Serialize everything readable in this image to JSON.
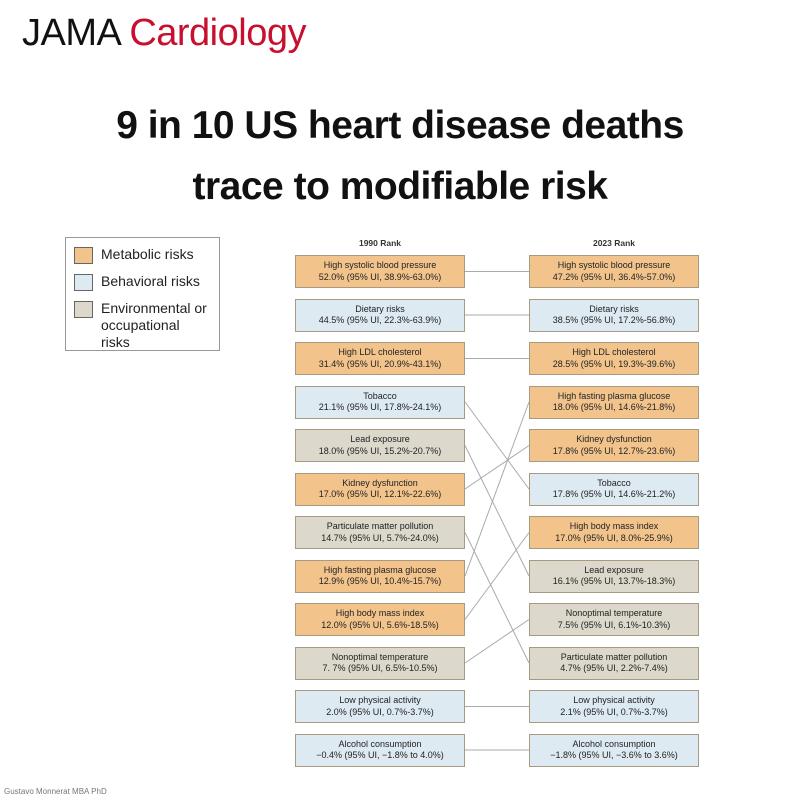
{
  "header": {
    "brand": "JAMA",
    "journal": "Cardiology"
  },
  "title": [
    "9 in 10 US heart disease deaths",
    "trace to modifiable risk"
  ],
  "legend": [
    {
      "label": "Metabolic risks",
      "color": "#f2c48c"
    },
    {
      "label": "Behavioral risks",
      "color": "#deeaf2"
    },
    {
      "label": "Environmental or occupational risks",
      "color": "#dcd8cb"
    }
  ],
  "columns": [
    {
      "title": "1990 Rank",
      "items": [
        {
          "name": "High systolic blood pressure",
          "stats": "52.0% (95% UI, 38.9%-63.0%)",
          "color": "#f2c48c"
        },
        {
          "name": "Dietary risks",
          "stats": "44.5% (95% UI, 22.3%-63.9%)",
          "color": "#deeaf2"
        },
        {
          "name": "High LDL cholesterol",
          "stats": "31.4% (95% UI, 20.9%-43.1%)",
          "color": "#f2c48c"
        },
        {
          "name": "Tobacco",
          "stats": "21.1% (95% UI, 17.8%-24.1%)",
          "color": "#deeaf2"
        },
        {
          "name": "Lead exposure",
          "stats": "18.0% (95% UI, 15.2%-20.7%)",
          "color": "#dcd8cb"
        },
        {
          "name": "Kidney dysfunction",
          "stats": "17.0% (95% UI, 12.1%-22.6%)",
          "color": "#f2c48c"
        },
        {
          "name": "Particulate matter pollution",
          "stats": "14.7% (95% UI, 5.7%-24.0%)",
          "color": "#dcd8cb"
        },
        {
          "name": "High fasting plasma glucose",
          "stats": "12.9% (95% UI, 10.4%-15.7%)",
          "color": "#f2c48c"
        },
        {
          "name": "High body mass index",
          "stats": "12.0% (95% UI, 5.6%-18.5%)",
          "color": "#f2c48c"
        },
        {
          "name": "Nonoptimal temperature",
          "stats": "7. 7% (95% UI, 6.5%-10.5%)",
          "color": "#dcd8cb"
        },
        {
          "name": "Low physical activity",
          "stats": "2.0% (95% UI, 0.7%-3.7%)",
          "color": "#deeaf2"
        },
        {
          "name": "Alcohol consumption",
          "stats": "−0.4% (95% UI, −1.8% to 4.0%)",
          "color": "#deeaf2"
        }
      ]
    },
    {
      "title": "2023 Rank",
      "items": [
        {
          "name": "High systolic blood pressure",
          "stats": "47.2% (95% UI, 36.4%-57.0%)",
          "color": "#f2c48c"
        },
        {
          "name": "Dietary risks",
          "stats": "38.5% (95% UI, 17.2%-56.8%)",
          "color": "#deeaf2"
        },
        {
          "name": "High LDL cholesterol",
          "stats": "28.5% (95% UI, 19.3%-39.6%)",
          "color": "#f2c48c"
        },
        {
          "name": "High fasting plasma glucose",
          "stats": "18.0% (95% UI, 14.6%-21.8%)",
          "color": "#f2c48c"
        },
        {
          "name": "Kidney dysfunction",
          "stats": "17.8% (95% UI, 12.7%-23.6%)",
          "color": "#f2c48c"
        },
        {
          "name": "Tobacco",
          "stats": "17.8% (95% UI, 14.6%-21.2%)",
          "color": "#deeaf2"
        },
        {
          "name": "High body mass index",
          "stats": "17.0% (95% UI, 8.0%-25.9%)",
          "color": "#f2c48c"
        },
        {
          "name": "Lead exposure",
          "stats": "16.1% (95% UI, 13.7%-18.3%)",
          "color": "#dcd8cb"
        },
        {
          "name": "Nonoptimal temperature",
          "stats": "7.5% (95% UI, 6.1%-10.3%)",
          "color": "#dcd8cb"
        },
        {
          "name": "Particulate matter pollution",
          "stats": "4.7% (95% UI, 2.2%-7.4%)",
          "color": "#dcd8cb"
        },
        {
          "name": "Low physical activity",
          "stats": "2.1% (95% UI, 0.7%-3.7%)",
          "color": "#deeaf2"
        },
        {
          "name": "Alcohol consumption",
          "stats": "−1.8% (95% UI, −3.6% to 3.6%)",
          "color": "#deeaf2"
        }
      ]
    }
  ],
  "footer": "Gustavo Monnerat MBA PhD"
}
